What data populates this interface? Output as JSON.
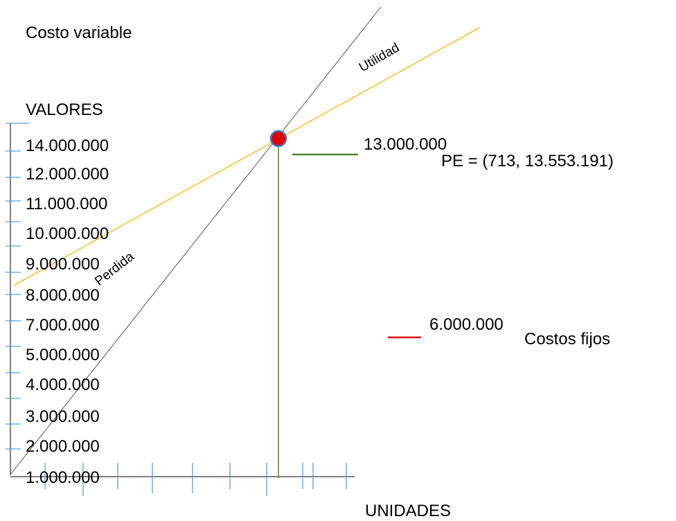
{
  "title": "Costo variable",
  "y_axis": {
    "label": "VALORES",
    "labels": [
      "14.000.000",
      "12.000.000",
      "11.000.000",
      "10.000.000",
      "9.000.000",
      "8.000.000",
      "7.000.000",
      "5.000.000",
      "4.000.000",
      "3.000.000",
      "2.000.000",
      "1.000.000"
    ]
  },
  "x_axis": {
    "label": "UNIDADES"
  },
  "regions": {
    "upper": "Utilidad",
    "lower": "Perdida"
  },
  "legend": [
    {
      "value": "13.000.000",
      "label": "PE = (713, 13.553.191)"
    },
    {
      "value": "6.000.000",
      "label": "Costos fijos"
    }
  ]
}
